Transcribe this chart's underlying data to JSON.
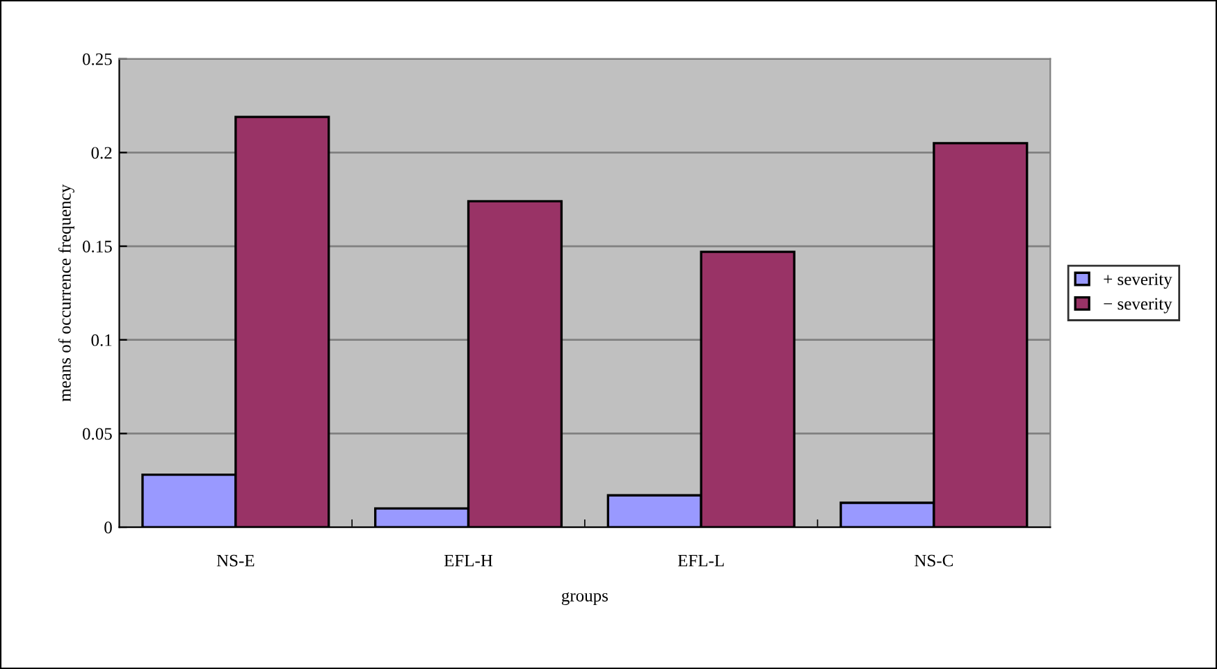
{
  "chart_data": {
    "type": "bar",
    "xlabel": "groups",
    "ylabel": "means of occurrence frequency",
    "categories": [
      "NS-E",
      "EFL-H",
      "EFL-L",
      "NS-C"
    ],
    "series": [
      {
        "name": "+ severity",
        "color": "#9999ff",
        "values": [
          0.028,
          0.01,
          0.017,
          0.013
        ]
      },
      {
        "name": "− severity",
        "color": "#993366",
        "values": [
          0.219,
          0.174,
          0.147,
          0.205
        ]
      }
    ],
    "ylim": [
      0,
      0.25
    ],
    "yticks": [
      0,
      0.05,
      0.1,
      0.15,
      0.2,
      0.25
    ],
    "grid": "y",
    "legend": "right"
  }
}
